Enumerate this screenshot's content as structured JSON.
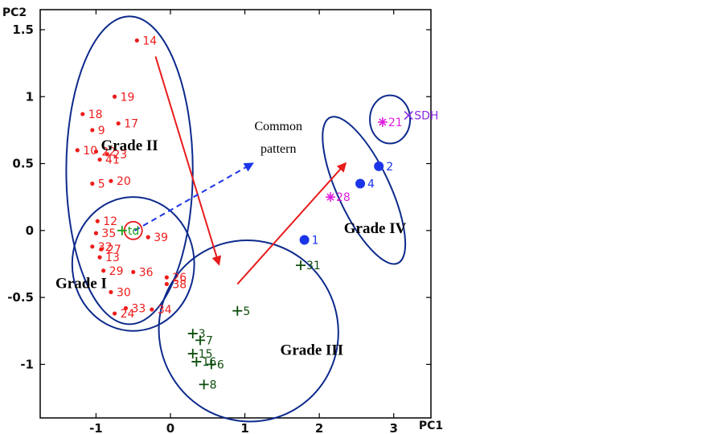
{
  "chart_data": {
    "type": "scatter",
    "xlabel": "PC1",
    "ylabel": "PC2",
    "xlim": [
      -1.75,
      3.5
    ],
    "ylim": [
      -1.4,
      1.65
    ],
    "x_ticks": [
      "-1",
      "0",
      "1",
      "2",
      "3"
    ],
    "y_ticks": [
      "1.5",
      "1",
      "0.5",
      "0",
      "-0.5",
      "-1"
    ],
    "colors": {
      "grade_1_2": "#ee1c1c",
      "std": "#1aa01a",
      "grade_3": "#0d4d0d",
      "grade_4": "#1a35e8",
      "pink": "#e020e0",
      "sdh": "#8a2be2",
      "ellipse": "#0d2a8c",
      "arrow_red": "#e81c1c",
      "arrow_blue": "#1a35e8"
    },
    "series": [
      {
        "marker": "dot",
        "color": "#ee1c1c",
        "points": [
          {
            "label": "14",
            "x": -0.45,
            "y": 1.42
          },
          {
            "label": "19",
            "x": -0.75,
            "y": 1.0
          },
          {
            "label": "18",
            "x": -1.18,
            "y": 0.87
          },
          {
            "label": "17",
            "x": -0.7,
            "y": 0.8
          },
          {
            "label": "9",
            "x": -1.05,
            "y": 0.75
          },
          {
            "label": "10",
            "x": -1.25,
            "y": 0.6
          },
          {
            "label": "22",
            "x": -1.0,
            "y": 0.59
          },
          {
            "label": "23",
            "x": -0.85,
            "y": 0.57
          },
          {
            "label": "41",
            "x": -0.95,
            "y": 0.53
          },
          {
            "label": "20",
            "x": -0.8,
            "y": 0.37
          },
          {
            "label": "5",
            "x": -1.05,
            "y": 0.35
          },
          {
            "label": "12",
            "x": -0.98,
            "y": 0.07
          },
          {
            "label": "35",
            "x": -1.0,
            "y": -0.02
          },
          {
            "label": "39",
            "x": -0.3,
            "y": -0.05
          },
          {
            "label": "32",
            "x": -1.05,
            "y": -0.12
          },
          {
            "label": "27",
            "x": -0.93,
            "y": -0.14
          },
          {
            "label": "13",
            "x": -0.95,
            "y": -0.2
          },
          {
            "label": "29",
            "x": -0.9,
            "y": -0.3
          },
          {
            "label": "36",
            "x": -0.5,
            "y": -0.31
          },
          {
            "label": "26",
            "x": -0.05,
            "y": -0.35
          },
          {
            "label": "38",
            "x": -0.05,
            "y": -0.4
          },
          {
            "label": "30",
            "x": -0.8,
            "y": -0.46
          },
          {
            "label": "33",
            "x": -0.6,
            "y": -0.58
          },
          {
            "label": "34",
            "x": -0.25,
            "y": -0.59
          },
          {
            "label": "24",
            "x": -0.75,
            "y": -0.62
          }
        ]
      },
      {
        "marker": "plus",
        "color": "#1aa01a",
        "points": [
          {
            "label": "td",
            "x": -0.65,
            "y": 0.0
          }
        ]
      },
      {
        "marker": "plus",
        "color": "#0d4d0d",
        "points": [
          {
            "label": "31",
            "x": 1.75,
            "y": -0.26
          },
          {
            "label": "5",
            "x": 0.9,
            "y": -0.6
          },
          {
            "label": "3",
            "x": 0.3,
            "y": -0.77
          },
          {
            "label": "7",
            "x": 0.4,
            "y": -0.82
          },
          {
            "label": "15",
            "x": 0.3,
            "y": -0.92
          },
          {
            "label": "16",
            "x": 0.35,
            "y": -0.98
          },
          {
            "label": "6",
            "x": 0.55,
            "y": -1.0
          },
          {
            "label": "8",
            "x": 0.45,
            "y": -1.15
          }
        ]
      },
      {
        "marker": "bigdot",
        "color": "#1a35e8",
        "points": [
          {
            "label": "1",
            "x": 1.8,
            "y": -0.07
          },
          {
            "label": "2",
            "x": 2.8,
            "y": 0.48
          },
          {
            "label": "4",
            "x": 2.55,
            "y": 0.35
          }
        ]
      },
      {
        "marker": "star",
        "color": "#e020e0",
        "points": [
          {
            "label": "21",
            "x": 2.85,
            "y": 0.81
          },
          {
            "label": "28",
            "x": 2.15,
            "y": 0.25
          }
        ]
      },
      {
        "marker": "x",
        "color": "#8a2be2",
        "points": [
          {
            "label": "SDH",
            "x": 3.2,
            "y": 0.86
          }
        ]
      }
    ],
    "ellipses": [
      {
        "name": "grade-ii",
        "cx": -0.55,
        "cy": 0.45,
        "rx": 0.85,
        "ry": 1.15,
        "angle": 0
      },
      {
        "name": "grade-i",
        "cx": -0.5,
        "cy": -0.25,
        "rx": 0.82,
        "ry": 0.5,
        "angle": 0
      },
      {
        "name": "grade-iii",
        "cx": 1.05,
        "cy": -0.75,
        "rx": 1.2,
        "ry": 0.68,
        "angle": 30
      },
      {
        "name": "grade-iv",
        "cx": 2.6,
        "cy": 0.3,
        "rx": 0.35,
        "ry": 0.6,
        "angle": 25
      },
      {
        "name": "sdh-group",
        "cx": 2.95,
        "cy": 0.83,
        "rx": 0.27,
        "ry": 0.18,
        "angle": 0
      }
    ],
    "arrows": [
      {
        "name": "arrow-14-to-iii",
        "from": [
          -0.2,
          1.3
        ],
        "to": [
          0.65,
          -0.25
        ],
        "style": "solid",
        "color": "#e81c1c"
      },
      {
        "name": "arrow-iii-to-iv",
        "from": [
          0.9,
          -0.4
        ],
        "to": [
          2.35,
          0.5
        ],
        "style": "solid",
        "color": "#e81c1c"
      },
      {
        "name": "arrow-common-pattern",
        "from": [
          -0.48,
          0.0
        ],
        "to": [
          1.1,
          0.5
        ],
        "style": "dashed",
        "color": "#1a35e8"
      }
    ],
    "annotations": [
      {
        "text": "Grade II",
        "x": -0.55,
        "y": 0.6
      },
      {
        "text": "Grade I",
        "x": -1.2,
        "y": -0.43
      },
      {
        "text": "Grade III",
        "x": 1.9,
        "y": -0.93
      },
      {
        "text": "Grade IV",
        "x": 2.75,
        "y": -0.02
      },
      {
        "text": "Common",
        "x": 1.45,
        "y": 0.75
      },
      {
        "text": "pattern",
        "x": 1.45,
        "y": 0.58
      }
    ]
  }
}
